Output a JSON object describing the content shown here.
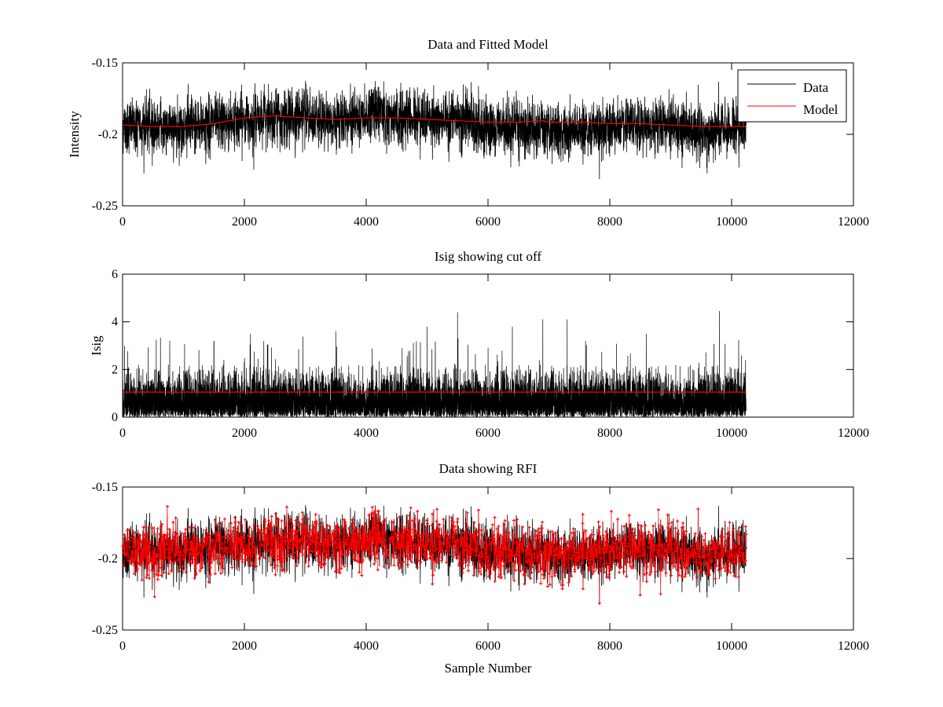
{
  "colors": {
    "data": "#000000",
    "model": "#ff0000",
    "rfi": "#ff0000",
    "axes": "#000000",
    "background": "#ffffff"
  },
  "chart_data": [
    {
      "type": "line",
      "title": "Data and Fitted Model",
      "xlabel": "",
      "ylabel": "Intensity",
      "xlim": [
        0,
        12000
      ],
      "ylim": [
        -0.25,
        -0.15
      ],
      "y_reversed": true,
      "xticks": [
        0,
        2000,
        4000,
        6000,
        8000,
        10000,
        12000
      ],
      "xtick_labels": [
        "0",
        "2000",
        "4000",
        "6000",
        "8000",
        "10000",
        "12000"
      ],
      "yticks": [
        -0.15,
        -0.2,
        -0.25
      ],
      "ytick_labels": [
        "-0.15",
        "-0.2",
        "-0.25"
      ],
      "legend": {
        "position": "top-right",
        "entries": [
          "Data",
          "Model"
        ]
      },
      "series": [
        {
          "name": "Data",
          "n_samples": 10240,
          "mean_y": -0.192,
          "noise_sd": 0.0095,
          "min_y": -0.233,
          "max_y": -0.162,
          "trend_x": [
            0,
            1000,
            2000,
            2500,
            3500,
            4000,
            4700,
            5500,
            6000,
            7000,
            8000,
            9000,
            9500,
            10240
          ],
          "trend_y": [
            -0.194,
            -0.195,
            -0.19,
            -0.187,
            -0.19,
            -0.186,
            -0.188,
            -0.19,
            -0.195,
            -0.198,
            -0.196,
            -0.192,
            -0.2,
            -0.193
          ]
        },
        {
          "name": "Model",
          "x": [
            0,
            500,
            1000,
            1500,
            2000,
            2500,
            3000,
            3500,
            4000,
            4500,
            5000,
            5500,
            6000,
            6500,
            6900,
            7000,
            7500,
            8000,
            8500,
            9000,
            9500,
            10240
          ],
          "y": [
            -0.1935,
            -0.1945,
            -0.1945,
            -0.1925,
            -0.1885,
            -0.187,
            -0.1885,
            -0.1895,
            -0.1885,
            -0.1885,
            -0.1895,
            -0.1905,
            -0.1915,
            -0.1915,
            -0.1905,
            -0.1915,
            -0.1915,
            -0.1925,
            -0.1925,
            -0.1935,
            -0.1945,
            -0.1945
          ]
        }
      ]
    },
    {
      "type": "line",
      "title": "Isig showing cut off",
      "xlabel": "",
      "ylabel": "Isig",
      "xlim": [
        0,
        12000
      ],
      "ylim": [
        0,
        6
      ],
      "xticks": [
        0,
        2000,
        4000,
        6000,
        8000,
        10000,
        12000
      ],
      "xtick_labels": [
        "0",
        "2000",
        "4000",
        "6000",
        "8000",
        "10000",
        "12000"
      ],
      "yticks": [
        0,
        2,
        4,
        6
      ],
      "ytick_labels": [
        "0",
        "2",
        "4",
        "6"
      ],
      "series": [
        {
          "name": "Isig",
          "n_samples": 10240,
          "typical_max": 2.2,
          "max_y": 4.45,
          "peaks_x": [
            2100,
            3500,
            5000,
            5500,
            6400,
            6900,
            7300,
            8600,
            9800
          ],
          "peaks_y": [
            3.5,
            3.6,
            3.8,
            4.4,
            3.8,
            4.1,
            4.1,
            3.5,
            4.45
          ]
        },
        {
          "name": "Cut off",
          "x": [
            0,
            10240
          ],
          "y": [
            1.05,
            1.05
          ]
        }
      ]
    },
    {
      "type": "scatter",
      "title": "Data showing RFI",
      "xlabel": "Sample Number",
      "ylabel": "",
      "xlim": [
        0,
        12000
      ],
      "ylim": [
        -0.25,
        -0.15
      ],
      "y_reversed": true,
      "xticks": [
        0,
        2000,
        4000,
        6000,
        8000,
        10000,
        12000
      ],
      "xtick_labels": [
        "0",
        "2000",
        "4000",
        "6000",
        "8000",
        "10000",
        "12000"
      ],
      "yticks": [
        -0.15,
        -0.2,
        -0.25
      ],
      "ytick_labels": [
        "-0.15",
        "-0.2",
        "-0.25"
      ],
      "series": [
        {
          "name": "Data",
          "n_samples": 10240,
          "mean_y": -0.192
        },
        {
          "name": "RFI",
          "marker": "+",
          "fraction_flagged": 0.55,
          "min_y": -0.233,
          "max_y": -0.162
        }
      ]
    }
  ]
}
